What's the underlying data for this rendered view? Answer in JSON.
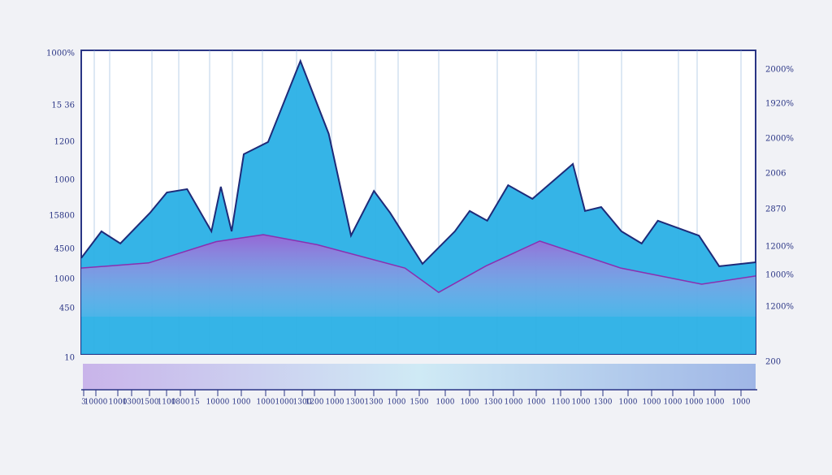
{
  "chart_data": {
    "type": "area",
    "left_labels": [
      "1000%",
      "15 36",
      "1200",
      "1000",
      "15800",
      "4500",
      "1000",
      "450",
      "10"
    ],
    "right_labels": [
      "2000%",
      "1920%",
      "2000%",
      "2006",
      "2870",
      "1200%",
      "1000%",
      "1200%",
      "200"
    ],
    "categories": [
      "3",
      "10000",
      "1000",
      "1300",
      "1500",
      "1100",
      "1800",
      "15",
      "10000",
      "1000",
      "1000",
      "1000",
      "1300",
      "1200",
      "1000",
      "1300",
      "1300",
      "1000",
      "1500",
      "1000",
      "1000",
      "1300",
      "1000",
      "1000",
      "1100",
      "1000",
      "1300",
      "1000",
      "1000",
      "1000",
      "1000",
      "1000",
      "1000"
    ],
    "xlim": [
      0,
      100
    ],
    "ylim": [
      0,
      100
    ],
    "series": [
      {
        "color": "#2ab0e6",
        "x": [
          0,
          3.0,
          5.8,
          10.2,
          12.7,
          15.7,
          19.3,
          20.7,
          22.3,
          24.1,
          27.7,
          32.5,
          36.7,
          40.0,
          43.4,
          45.8,
          50.6,
          55.4,
          57.6,
          60.2,
          63.3,
          66.9,
          72.9,
          74.7,
          77.1,
          80.1,
          83.1,
          85.5,
          91.6,
          94.6,
          100
        ],
        "values": [
          31.6,
          40.4,
          36.4,
          46.5,
          53.2,
          54.3,
          40.4,
          55.1,
          40.4,
          65.8,
          69.8,
          96.5,
          72.5,
          39.0,
          53.7,
          46.5,
          29.7,
          40.4,
          47.1,
          43.9,
          55.6,
          51.1,
          62.6,
          47.1,
          48.4,
          40.4,
          36.4,
          43.9,
          39.0,
          28.9,
          30.2
        ]
      },
      {
        "color": "#b24fd0",
        "x": [
          0,
          10,
          20,
          27,
          35,
          48,
          53,
          60,
          68,
          80,
          92,
          100
        ],
        "values": [
          28.3,
          30,
          37,
          39.3,
          36,
          28.3,
          20.3,
          29,
          37.2,
          28.3,
          23,
          25.7
        ]
      }
    ]
  }
}
